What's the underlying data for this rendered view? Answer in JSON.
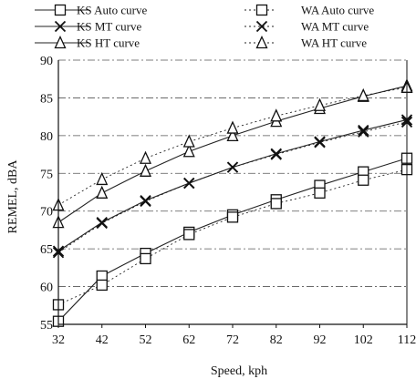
{
  "chart_data": {
    "type": "line",
    "title": "",
    "xlabel": "Speed, kph",
    "ylabel": "REMEL, dBA",
    "x": [
      32,
      42,
      52,
      62,
      72,
      82,
      92,
      102,
      112
    ],
    "ylim": [
      55,
      90
    ],
    "yticks": [
      55,
      60,
      65,
      70,
      75,
      80,
      85,
      90
    ],
    "grid": "horizontal",
    "legend_position": "top",
    "series": [
      {
        "name": "KS Auto curve",
        "marker": "square",
        "line": "solid",
        "values": [
          55.4,
          61.4,
          64.4,
          67.2,
          69.5,
          71.5,
          73.4,
          75.2,
          77.0
        ]
      },
      {
        "name": "KS MT curve",
        "marker": "x",
        "line": "solid",
        "values": [
          64.7,
          68.5,
          71.4,
          73.7,
          75.8,
          77.6,
          79.2,
          80.7,
          82.1
        ]
      },
      {
        "name": "KS HT curve",
        "marker": "triangle",
        "line": "solid",
        "values": [
          68.5,
          72.4,
          75.3,
          77.9,
          80.0,
          81.9,
          83.6,
          85.2,
          86.6
        ]
      },
      {
        "name": "WA Auto curve",
        "marker": "square",
        "line": "dashed",
        "values": [
          57.6,
          60.2,
          63.7,
          66.9,
          69.2,
          71.0,
          72.4,
          74.1,
          75.5
        ]
      },
      {
        "name": "WA MT curve",
        "marker": "x",
        "line": "dashed",
        "values": [
          64.5,
          68.4,
          71.3,
          73.7,
          75.8,
          77.5,
          79.1,
          80.5,
          81.8
        ]
      },
      {
        "name": "WA HT curve",
        "marker": "triangle",
        "line": "dashed",
        "values": [
          70.8,
          74.2,
          77.0,
          79.2,
          81.0,
          82.6,
          84.0,
          85.3,
          86.4
        ]
      }
    ]
  }
}
